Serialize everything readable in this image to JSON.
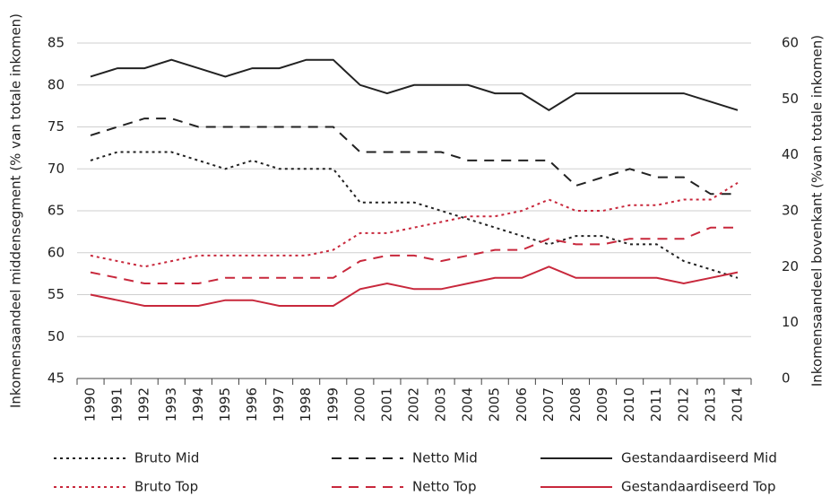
{
  "chart_data": {
    "type": "line",
    "categories": [
      "1990",
      "1991",
      "1992",
      "1993",
      "1994",
      "1995",
      "1996",
      "1997",
      "1998",
      "1999",
      "2000",
      "2001",
      "2002",
      "2003",
      "2004",
      "2005",
      "2006",
      "2007",
      "2008",
      "2009",
      "2010",
      "2011",
      "2012",
      "2013",
      "2014"
    ],
    "ylabel": "Inkomensaandeel middensegment (% van totale inkomen)",
    "y2label": "Inkomensaandeel bovenkant (%van totale inkomen)",
    "ylim": [
      45,
      85
    ],
    "yticks": [
      45,
      50,
      55,
      60,
      65,
      70,
      75,
      80,
      85
    ],
    "y2lim": [
      0,
      60
    ],
    "y2ticks": [
      0,
      10,
      20,
      30,
      40,
      50,
      60
    ],
    "grid": true,
    "series": [
      {
        "name": "Bruto Mid",
        "color": "#222222",
        "dash": "dotted",
        "values": [
          71,
          72,
          72,
          72,
          71,
          70,
          71,
          70,
          70,
          70,
          66,
          66,
          66,
          65,
          64,
          63,
          62,
          61,
          62,
          62,
          61,
          61,
          59,
          58,
          57
        ]
      },
      {
        "name": "Netto Mid",
        "color": "#222222",
        "dash": "dashed",
        "values": [
          74,
          75,
          76,
          76,
          75,
          75,
          75,
          75,
          75,
          75,
          72,
          72,
          72,
          72,
          71,
          71,
          71,
          71,
          68,
          69,
          70,
          69,
          69,
          67,
          67
        ]
      },
      {
        "name": "Gestandaardiseerd Mid",
        "color": "#222222",
        "dash": "solid",
        "values": [
          81,
          82,
          82,
          83,
          82,
          81,
          82,
          82,
          83,
          83,
          80,
          79,
          80,
          80,
          80,
          79,
          79,
          77,
          79,
          79,
          79,
          79,
          79,
          78,
          77
        ]
      },
      {
        "name": "Bruto Top",
        "color": "#c8283c",
        "dash": "dotted",
        "axis": "y2",
        "values": [
          22,
          21,
          20,
          21,
          22,
          22,
          22,
          22,
          22,
          23,
          26,
          26,
          27,
          28,
          29,
          29,
          30,
          32,
          30,
          30,
          31,
          31,
          32,
          32,
          35
        ]
      },
      {
        "name": "Netto Top",
        "color": "#c8283c",
        "dash": "dashed",
        "axis": "y2",
        "values": [
          19,
          18,
          17,
          17,
          17,
          18,
          18,
          18,
          18,
          18,
          21,
          22,
          22,
          21,
          22,
          23,
          23,
          25,
          24,
          24,
          25,
          25,
          25,
          27,
          27
        ]
      },
      {
        "name": "Gestandaardiseerd Top",
        "color": "#c8283c",
        "dash": "solid",
        "axis": "y2",
        "values": [
          15,
          14,
          13,
          13,
          13,
          14,
          14,
          13,
          13,
          13,
          16,
          17,
          16,
          16,
          17,
          18,
          18,
          20,
          18,
          18,
          18,
          18,
          17,
          18,
          19
        ]
      }
    ]
  }
}
